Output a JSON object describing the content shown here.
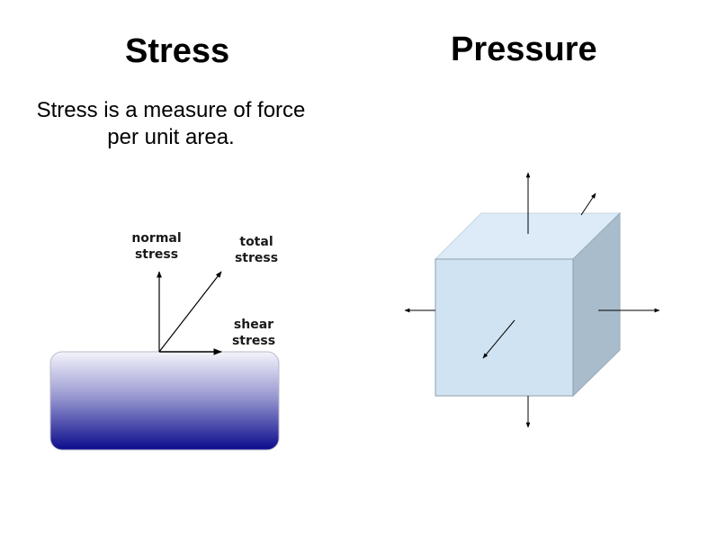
{
  "stress": {
    "title": "Stress",
    "description_line1": "Stress is a measure of force",
    "description_line2": "per unit area.",
    "labels": {
      "normal_line1": "normal",
      "normal_line2": "stress",
      "total_line1": "total",
      "total_line2": "stress",
      "shear_line1": "shear",
      "shear_line2": "stress"
    },
    "block_gradient": {
      "top": "#f4f4fb",
      "bottom": "#0b0b8c"
    }
  },
  "pressure": {
    "title": "Pressure",
    "cube_colors": {
      "front": "#cfe3f2",
      "top": "#dcebf7",
      "side": "#a9bccb"
    }
  }
}
